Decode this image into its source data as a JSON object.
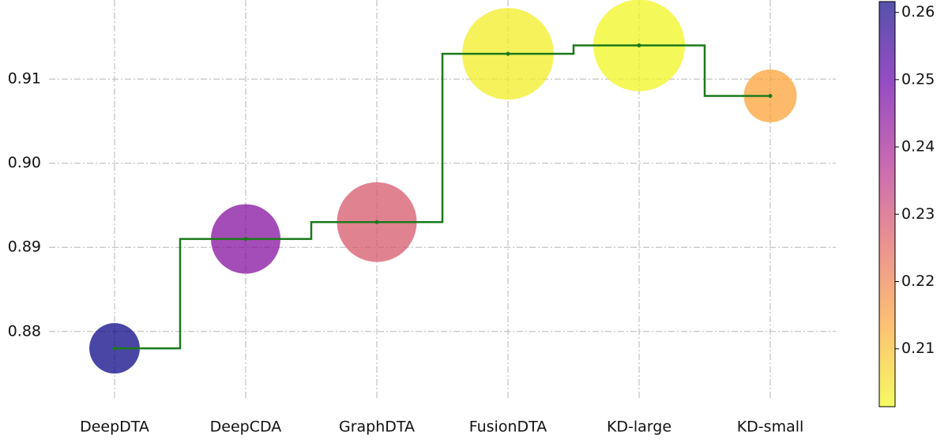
{
  "chart_data": {
    "type": "bubble-step",
    "categories": [
      "DeepDTA",
      "DeepCDA",
      "GraphDTA",
      "FusionDTA",
      "KD-large",
      "KD-small"
    ],
    "values": [
      0.878,
      0.891,
      0.893,
      0.913,
      0.914,
      0.908
    ],
    "sizes": [
      1000,
      1900,
      2500,
      3300,
      3300,
      1100
    ],
    "color_values": [
      0.2616,
      0.245,
      0.228,
      0.203,
      0.202,
      0.214
    ],
    "line_color": "#1a7a1a",
    "ylim": [
      0.872,
      0.9194
    ],
    "yticks": [
      0.88,
      {
        "value": 0.89,
        "label": "0.89"
      },
      {
        "value": 0.9,
        "label": "0.90"
      },
      0.91
    ],
    "clim": [
      0.2014,
      0.2616
    ],
    "cticks": [
      0.21,
      0.22,
      0.23,
      0.24,
      0.25,
      0.26
    ],
    "colormap": [
      "#f0f921",
      "#fca636",
      "#e16462",
      "#b12a90",
      "#6a00a8",
      "#0d0887"
    ],
    "grid": true
  }
}
